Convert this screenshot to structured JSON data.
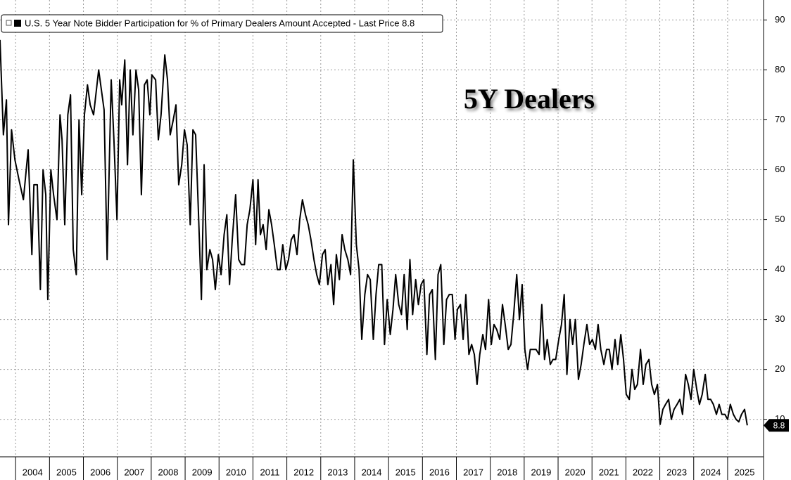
{
  "chart_data": {
    "type": "line",
    "legend": "U.S. 5 Year Note Bidder Participation for % of Primary Dealers Amount Accepted - Last Price 8.8",
    "annotation": "5Y Dealers",
    "xlim": [
      2003.54,
      2026.06
    ],
    "xticks": [
      2004,
      2005,
      2006,
      2007,
      2008,
      2009,
      2010,
      2011,
      2012,
      2013,
      2014,
      2015,
      2016,
      2017,
      2018,
      2019,
      2020,
      2021,
      2022,
      2023,
      2024,
      2025
    ],
    "ylim": [
      2.5,
      94
    ],
    "yticks": [
      10,
      20,
      30,
      40,
      50,
      60,
      70,
      80,
      90
    ],
    "grid": true,
    "series": [
      {
        "name": "U.S. 5 Year Note Bidder Participation for % of Primary Dealers Amount Accepted",
        "color": "#000000",
        "x": [
          2003.54,
          2003.64,
          2003.73,
          2003.79,
          2003.88,
          2003.98,
          2004.1,
          2004.23,
          2004.37,
          2004.48,
          2004.54,
          2004.64,
          2004.73,
          2004.81,
          2004.89,
          2004.95,
          2005.04,
          2005.12,
          2005.22,
          2005.31,
          2005.37,
          2005.45,
          2005.54,
          2005.62,
          2005.7,
          2005.79,
          2005.87,
          2005.95,
          2006.03,
          2006.12,
          2006.2,
          2006.3,
          2006.45,
          2006.61,
          2006.7,
          2006.82,
          2006.9,
          2006.99,
          2007.07,
          2007.13,
          2007.22,
          2007.3,
          2007.38,
          2007.46,
          2007.55,
          2007.63,
          2007.71,
          2007.8,
          2007.88,
          2007.96,
          2008.02,
          2008.13,
          2008.21,
          2008.29,
          2008.4,
          2008.48,
          2008.56,
          2008.65,
          2008.73,
          2008.81,
          2008.9,
          2008.98,
          2009.06,
          2009.15,
          2009.23,
          2009.31,
          2009.39,
          2009.48,
          2009.56,
          2009.64,
          2009.73,
          2009.81,
          2009.89,
          2009.98,
          2010.06,
          2010.15,
          2010.23,
          2010.31,
          2010.39,
          2010.49,
          2010.58,
          2010.66,
          2010.75,
          2010.83,
          2010.91,
          2011.0,
          2011.08,
          2011.15,
          2011.22,
          2011.3,
          2011.39,
          2011.47,
          2011.55,
          2011.63,
          2011.72,
          2011.8,
          2011.88,
          2011.97,
          2012.05,
          2012.13,
          2012.21,
          2012.3,
          2012.38,
          2012.46,
          2012.55,
          2012.63,
          2012.71,
          2012.8,
          2012.88,
          2012.96,
          2013.05,
          2013.13,
          2013.21,
          2013.3,
          2013.38,
          2013.46,
          2013.55,
          2013.63,
          2013.71,
          2013.8,
          2013.88,
          2013.96,
          2014.05,
          2014.13,
          2014.21,
          2014.3,
          2014.38,
          2014.46,
          2014.55,
          2014.63,
          2014.71,
          2014.8,
          2014.88,
          2014.96,
          2015.05,
          2015.13,
          2015.21,
          2015.3,
          2015.38,
          2015.46,
          2015.55,
          2015.63,
          2015.71,
          2015.8,
          2015.88,
          2015.96,
          2016.04,
          2016.13,
          2016.21,
          2016.29,
          2016.38,
          2016.46,
          2016.54,
          2016.63,
          2016.71,
          2016.79,
          2016.88,
          2016.96,
          2017.03,
          2017.12,
          2017.2,
          2017.28,
          2017.37,
          2017.45,
          2017.53,
          2017.61,
          2017.69,
          2017.78,
          2017.86,
          2017.95,
          2018.03,
          2018.11,
          2018.19,
          2018.28,
          2018.36,
          2018.44,
          2018.53,
          2018.61,
          2018.69,
          2018.78,
          2018.86,
          2018.94,
          2019.02,
          2019.1,
          2019.18,
          2019.27,
          2019.35,
          2019.44,
          2019.52,
          2019.6,
          2019.68,
          2019.77,
          2019.85,
          2019.93,
          2020.02,
          2020.1,
          2020.18,
          2020.26,
          2020.35,
          2020.43,
          2020.51,
          2020.6,
          2020.68,
          2020.76,
          2020.85,
          2020.93,
          2021.01,
          2021.1,
          2021.18,
          2021.26,
          2021.35,
          2021.43,
          2021.51,
          2021.59,
          2021.68,
          2021.76,
          2021.85,
          2021.93,
          2022.01,
          2022.1,
          2022.18,
          2022.26,
          2022.34,
          2022.43,
          2022.51,
          2022.59,
          2022.68,
          2022.76,
          2022.84,
          2022.93,
          2023.01,
          2023.09,
          2023.17,
          2023.26,
          2023.34,
          2023.42,
          2023.51,
          2023.59,
          2023.67,
          2023.76,
          2023.84,
          2023.92,
          2024.0,
          2024.09,
          2024.17,
          2024.25,
          2024.34,
          2024.42,
          2024.5,
          2024.58,
          2024.67,
          2024.75,
          2024.83,
          2024.92,
          2025.0,
          2025.08,
          2025.17,
          2025.25,
          2025.33,
          2025.41,
          2025.5,
          2025.58
        ],
        "values": [
          86,
          67,
          74,
          49,
          68,
          62,
          58,
          54,
          64,
          43,
          57,
          57,
          36,
          60,
          55,
          34,
          60,
          55,
          50,
          71,
          66,
          49,
          71,
          75,
          44,
          39,
          70,
          55,
          71,
          77,
          73,
          71,
          80,
          72,
          42,
          78,
          66,
          50,
          78,
          73,
          82,
          61,
          80,
          67,
          80,
          76,
          55,
          77,
          78,
          71,
          79,
          78,
          66,
          71,
          83,
          78,
          67,
          70,
          73,
          57,
          61,
          68,
          65,
          49,
          68,
          67,
          52,
          34,
          61,
          40,
          44,
          42,
          36,
          43,
          39,
          47,
          51,
          37,
          46,
          55,
          42,
          41,
          41,
          49,
          52,
          58,
          45,
          58,
          47,
          49,
          44,
          52,
          49,
          45,
          40,
          40,
          45,
          40,
          42,
          46,
          47,
          43,
          50,
          54,
          51,
          49,
          46,
          42,
          39,
          37,
          43,
          44,
          37,
          41,
          33,
          43,
          38,
          47,
          44,
          42,
          39,
          62,
          45,
          40,
          26,
          35,
          39,
          38,
          26,
          35,
          41,
          41,
          25,
          34,
          27,
          32,
          39,
          33,
          31,
          39,
          28,
          42,
          31,
          38,
          33,
          37,
          38,
          23,
          35,
          36,
          22,
          39,
          41,
          25,
          34,
          35,
          35,
          26,
          32,
          33,
          26,
          35,
          23,
          25,
          23,
          17,
          23,
          27,
          24,
          34,
          25,
          29,
          28,
          26,
          33,
          29,
          24,
          25,
          31,
          39,
          30,
          37,
          24,
          20,
          24,
          24,
          24,
          23,
          33,
          22,
          26,
          21,
          22,
          22,
          26,
          29,
          35,
          19,
          30,
          25,
          30,
          18,
          21,
          25,
          29,
          25,
          26,
          24,
          29,
          24,
          21,
          24,
          24,
          20,
          26,
          21,
          27,
          22,
          15,
          14,
          20,
          16,
          17,
          24,
          17,
          21,
          22,
          17,
          15,
          17,
          9,
          12,
          13,
          14,
          10,
          12,
          13,
          14,
          11,
          19,
          17,
          14,
          20,
          16,
          13,
          15,
          19,
          14,
          14,
          13,
          11,
          13,
          11,
          11,
          10,
          13,
          11,
          10,
          9.5,
          11,
          12,
          8.8
        ]
      }
    ]
  }
}
